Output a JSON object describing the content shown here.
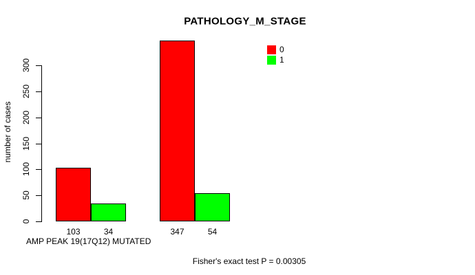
{
  "chart_data": {
    "type": "bar",
    "title": "PATHOLOGY_M_STAGE",
    "ylabel": "number of cases",
    "xlabel": "AMP PEAK 19(17Q12) MUTATED",
    "annotation": "Fisher's exact test P = 0.00305",
    "y_ticks": [
      0,
      50,
      100,
      150,
      200,
      250,
      300
    ],
    "ylim": [
      0,
      347
    ],
    "grid": false,
    "legend_position": "top-right",
    "legend": [
      {
        "label": "0",
        "color": "#ff0000"
      },
      {
        "label": "1",
        "color": "#00ff00"
      }
    ],
    "series": [
      {
        "name": "0",
        "color": "#ff0000",
        "values": [
          103,
          347
        ]
      },
      {
        "name": "1",
        "color": "#00ff00",
        "values": [
          34,
          54
        ]
      }
    ],
    "bar_labels": [
      [
        "103",
        "34"
      ],
      [
        "347",
        "54"
      ]
    ],
    "colors": {
      "bar_border": "#000000",
      "axis": "#000000",
      "text": "#000000",
      "background": "#ffffff"
    }
  }
}
